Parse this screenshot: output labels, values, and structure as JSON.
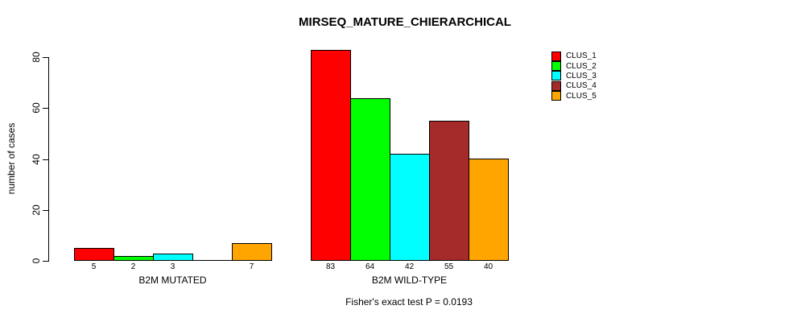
{
  "chart_data": {
    "type": "bar",
    "title": "MIRSEQ_MATURE_CHIERARCHICAL",
    "ylabel": "number of cases",
    "xlabel": "",
    "ylim": [
      0,
      80
    ],
    "yticks": [
      0,
      20,
      40,
      60,
      80
    ],
    "grid": false,
    "legend_position": "top-right",
    "legend": [
      {
        "label": "CLUS_1",
        "color": "#FF0000"
      },
      {
        "label": "CLUS_2",
        "color": "#00FF00"
      },
      {
        "label": "CLUS_3",
        "color": "#00FFFF"
      },
      {
        "label": "CLUS_4",
        "color": "#A52A2A"
      },
      {
        "label": "CLUS_5",
        "color": "#FFA500"
      }
    ],
    "groups": [
      {
        "label": "B2M MUTATED",
        "values": [
          5,
          2,
          3,
          0,
          7
        ],
        "bar_labels": [
          "5",
          "2",
          "3",
          "",
          "7"
        ]
      },
      {
        "label": "B2M WILD-TYPE",
        "values": [
          83,
          64,
          42,
          55,
          40
        ],
        "bar_labels": [
          "83",
          "64",
          "42",
          "55",
          "40"
        ]
      }
    ],
    "annotation": "Fisher's exact test P = 0.0193",
    "axis_color": "#000000",
    "background_color": "#ffffff"
  }
}
